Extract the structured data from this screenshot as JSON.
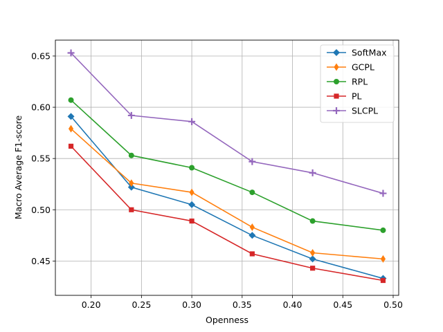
{
  "chart_data": {
    "type": "line",
    "title": "",
    "xlabel": "Openness",
    "ylabel": "Macro Average F1-score",
    "xlim": [
      0.1645,
      0.5055
    ],
    "ylim": [
      0.4165,
      0.6655
    ],
    "grid": true,
    "legend_position": "top-right",
    "x": [
      0.18,
      0.24,
      0.3,
      0.36,
      0.42,
      0.49
    ],
    "xticks": [
      0.2,
      0.25,
      0.3,
      0.35,
      0.4,
      0.45,
      0.5
    ],
    "xtick_labels": [
      "0.20",
      "0.25",
      "0.30",
      "0.35",
      "0.40",
      "0.45",
      "0.50"
    ],
    "yticks": [
      0.45,
      0.5,
      0.55,
      0.6,
      0.65
    ],
    "ytick_labels": [
      "0.45",
      "0.50",
      "0.55",
      "0.60",
      "0.65"
    ],
    "series": [
      {
        "name": "SoftMax",
        "color": "#1f77b4",
        "marker": "diamond",
        "values": [
          0.591,
          0.522,
          0.505,
          0.475,
          0.452,
          0.433
        ]
      },
      {
        "name": "GCPL",
        "color": "#ff7f0e",
        "marker": "thin-diamond",
        "values": [
          0.579,
          0.526,
          0.517,
          0.483,
          0.458,
          0.452
        ]
      },
      {
        "name": "RPL",
        "color": "#2ca02c",
        "marker": "circle",
        "values": [
          0.607,
          0.553,
          0.541,
          0.517,
          0.489,
          0.48
        ]
      },
      {
        "name": "PL",
        "color": "#d62728",
        "marker": "square",
        "values": [
          0.562,
          0.5,
          0.489,
          0.457,
          0.443,
          0.431
        ]
      },
      {
        "name": "SLCPL",
        "color": "#9467bd",
        "marker": "plus",
        "values": [
          0.653,
          0.592,
          0.586,
          0.547,
          0.536,
          0.516
        ]
      }
    ]
  }
}
